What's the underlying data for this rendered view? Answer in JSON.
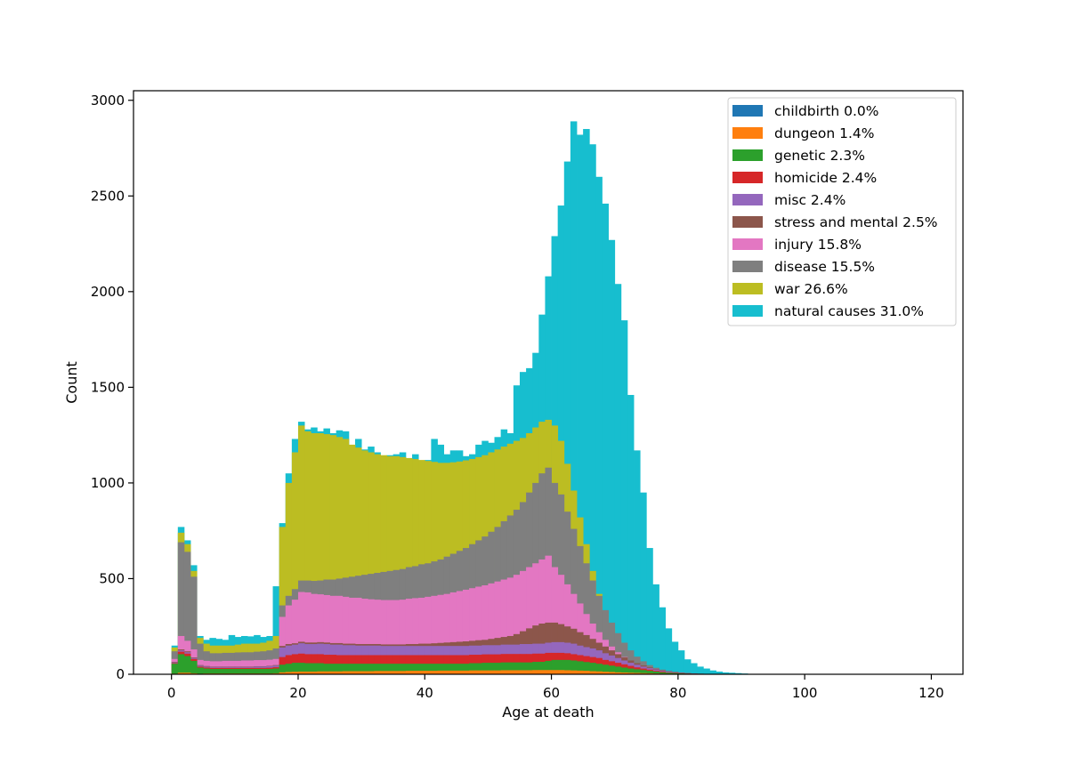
{
  "chart_data": {
    "type": "bar",
    "stacked": true,
    "histogram": true,
    "xlabel": "Age at death",
    "ylabel": "Count",
    "xlim": [
      -6,
      125
    ],
    "ylim": [
      0,
      3050
    ],
    "xticks": [
      0,
      20,
      40,
      60,
      80,
      100,
      120
    ],
    "yticks": [
      0,
      500,
      1000,
      1500,
      2000,
      2500,
      3000
    ],
    "bin_width": 1,
    "legend_position": "upper-right",
    "legend": [
      {
        "name": "childbirth 0.0%",
        "color": "#1f77b4"
      },
      {
        "name": "dungeon 1.4%",
        "color": "#ff7f0e"
      },
      {
        "name": "genetic 2.3%",
        "color": "#2ca02c"
      },
      {
        "name": "homicide 2.4%",
        "color": "#d62728"
      },
      {
        "name": "misc 2.4%",
        "color": "#9467bd"
      },
      {
        "name": "stress and mental 2.5%",
        "color": "#8c564b"
      },
      {
        "name": "injury 15.8%",
        "color": "#e377c2"
      },
      {
        "name": "disease 15.5%",
        "color": "#7f7f7f"
      },
      {
        "name": "war 26.6%",
        "color": "#bcbd22"
      },
      {
        "name": "natural causes 31.0%",
        "color": "#17becf"
      }
    ],
    "x": [
      0,
      1,
      2,
      3,
      4,
      5,
      6,
      7,
      8,
      9,
      10,
      11,
      12,
      13,
      14,
      15,
      16,
      17,
      18,
      19,
      20,
      21,
      22,
      23,
      24,
      25,
      26,
      27,
      28,
      29,
      30,
      31,
      32,
      33,
      34,
      35,
      36,
      37,
      38,
      39,
      40,
      41,
      42,
      43,
      44,
      45,
      46,
      47,
      48,
      49,
      50,
      51,
      52,
      53,
      54,
      55,
      56,
      57,
      58,
      59,
      60,
      61,
      62,
      63,
      64,
      65,
      66,
      67,
      68,
      69,
      70,
      71,
      72,
      73,
      74,
      75,
      76,
      77,
      78,
      79,
      80,
      81,
      82,
      83,
      84,
      85,
      86,
      87,
      88,
      89,
      90,
      91,
      92,
      93,
      94,
      95,
      96,
      97,
      98,
      99,
      100,
      101,
      102,
      103,
      104,
      105,
      106,
      107,
      108
    ],
    "stack_totals": {
      "childbirth": [
        0,
        0,
        0,
        0,
        0,
        0,
        0,
        0,
        0,
        0,
        0,
        0,
        0,
        0,
        0,
        0,
        0,
        0,
        0,
        0,
        0,
        0,
        0,
        0,
        0,
        0,
        0,
        0,
        0,
        0,
        0,
        0,
        0,
        0,
        0,
        0,
        0,
        0,
        0,
        0,
        0,
        0,
        0,
        0,
        0,
        0,
        0,
        0,
        0,
        0,
        0,
        0,
        0,
        0,
        0,
        0,
        0,
        0,
        0,
        0,
        0,
        0,
        0,
        0,
        0,
        0,
        0,
        0,
        0,
        0,
        0,
        0,
        0,
        0,
        0,
        0,
        0,
        0,
        0,
        0,
        0,
        0,
        0,
        0,
        0,
        0,
        0,
        0,
        0,
        0,
        0,
        0,
        0,
        0,
        0,
        0,
        0,
        0,
        0,
        0,
        0,
        0,
        0,
        0,
        0,
        0,
        0,
        0,
        0
      ],
      "dungeon": [
        3,
        8,
        8,
        5,
        3,
        4,
        4,
        4,
        4,
        4,
        4,
        4,
        4,
        4,
        4,
        4,
        5,
        10,
        12,
        13,
        14,
        14,
        14,
        15,
        15,
        15,
        15,
        16,
        16,
        16,
        16,
        16,
        17,
        17,
        17,
        17,
        17,
        18,
        18,
        18,
        18,
        18,
        19,
        19,
        19,
        19,
        19,
        20,
        20,
        20,
        20,
        20,
        21,
        21,
        21,
        21,
        21,
        22,
        22,
        22,
        22,
        22,
        21,
        20,
        19,
        18,
        16,
        15,
        13,
        12,
        10,
        9,
        8,
        7,
        6,
        5,
        4,
        3,
        3,
        2,
        2,
        1,
        1,
        1,
        1,
        0,
        0,
        0,
        0,
        0,
        0,
        0,
        0,
        0,
        0,
        0,
        0,
        0,
        0,
        0,
        0,
        0,
        0,
        0,
        0,
        0,
        0,
        0,
        0
      ],
      "genetic": [
        55,
        105,
        95,
        70,
        35,
        30,
        28,
        28,
        28,
        28,
        28,
        28,
        28,
        28,
        28,
        28,
        30,
        50,
        55,
        60,
        60,
        58,
        58,
        58,
        55,
        55,
        55,
        55,
        55,
        55,
        55,
        55,
        55,
        55,
        55,
        55,
        55,
        55,
        55,
        55,
        55,
        55,
        55,
        55,
        55,
        55,
        55,
        58,
        58,
        60,
        60,
        60,
        62,
        62,
        62,
        62,
        62,
        65,
        65,
        70,
        75,
        75,
        75,
        72,
        68,
        64,
        60,
        55,
        50,
        45,
        40,
        35,
        30,
        26,
        22,
        18,
        14,
        10,
        8,
        6,
        4,
        3,
        2,
        1,
        1,
        0,
        0,
        0,
        0,
        0,
        0,
        0,
        0,
        0,
        0,
        0,
        0,
        0,
        0,
        0,
        0,
        0,
        0,
        0,
        0,
        0,
        0,
        0,
        0
      ],
      "homicide": [
        58,
        118,
        108,
        80,
        40,
        35,
        33,
        33,
        33,
        33,
        33,
        33,
        33,
        33,
        33,
        34,
        37,
        90,
        100,
        105,
        108,
        105,
        105,
        105,
        102,
        102,
        100,
        100,
        100,
        100,
        100,
        100,
        100,
        100,
        100,
        100,
        100,
        100,
        100,
        100,
        100,
        100,
        100,
        100,
        100,
        100,
        100,
        102,
        102,
        104,
        104,
        104,
        106,
        106,
        106,
        106,
        106,
        108,
        108,
        112,
        112,
        112,
        110,
        105,
        100,
        95,
        90,
        85,
        75,
        68,
        60,
        52,
        44,
        36,
        30,
        24,
        18,
        14,
        10,
        8,
        6,
        4,
        3,
        2,
        1,
        1,
        0,
        0,
        0,
        0,
        0,
        0,
        0,
        0,
        0,
        0,
        0,
        0,
        0,
        0,
        0,
        0,
        0,
        0,
        0,
        0,
        0,
        0,
        0
      ],
      "misc": [
        62,
        125,
        115,
        85,
        45,
        40,
        38,
        38,
        38,
        38,
        38,
        38,
        38,
        40,
        40,
        42,
        45,
        140,
        150,
        155,
        162,
        158,
        158,
        160,
        158,
        155,
        155,
        152,
        152,
        150,
        150,
        150,
        150,
        148,
        148,
        148,
        148,
        148,
        148,
        148,
        148,
        148,
        148,
        148,
        148,
        148,
        148,
        150,
        150,
        152,
        152,
        152,
        155,
        155,
        155,
        158,
        158,
        160,
        160,
        165,
        168,
        168,
        165,
        160,
        150,
        142,
        135,
        125,
        110,
        98,
        85,
        72,
        60,
        50,
        40,
        32,
        25,
        18,
        14,
        10,
        7,
        5,
        3,
        2,
        1,
        1,
        0,
        0,
        0,
        0,
        0,
        0,
        0,
        0,
        0,
        0,
        0,
        0,
        0,
        0,
        0,
        0,
        0,
        0,
        0,
        0,
        0,
        0,
        0
      ],
      "stress": [
        65,
        130,
        120,
        88,
        48,
        43,
        40,
        40,
        40,
        40,
        40,
        40,
        40,
        42,
        42,
        44,
        48,
        148,
        158,
        162,
        170,
        166,
        166,
        168,
        166,
        163,
        163,
        160,
        160,
        158,
        158,
        158,
        158,
        156,
        156,
        156,
        156,
        158,
        158,
        160,
        160,
        162,
        164,
        166,
        168,
        170,
        172,
        175,
        178,
        180,
        185,
        190,
        195,
        200,
        210,
        225,
        240,
        255,
        265,
        270,
        270,
        262,
        250,
        238,
        220,
        205,
        185,
        165,
        145,
        125,
        105,
        88,
        72,
        58,
        46,
        36,
        28,
        21,
        16,
        12,
        8,
        6,
        4,
        3,
        2,
        1,
        0,
        0,
        0,
        0,
        0,
        0,
        0,
        0,
        0,
        0,
        0,
        0,
        0,
        0,
        0,
        0,
        0,
        0,
        0,
        0,
        0,
        0,
        0
      ],
      "injury": [
        80,
        200,
        175,
        130,
        75,
        70,
        68,
        68,
        70,
        70,
        70,
        72,
        72,
        74,
        74,
        76,
        80,
        300,
        360,
        390,
        430,
        428,
        420,
        418,
        414,
        410,
        410,
        405,
        400,
        400,
        395,
        392,
        390,
        388,
        388,
        388,
        390,
        395,
        398,
        400,
        405,
        410,
        415,
        420,
        428,
        435,
        442,
        450,
        458,
        465,
        475,
        485,
        495,
        505,
        520,
        540,
        560,
        580,
        600,
        620,
        560,
        520,
        470,
        420,
        370,
        315,
        265,
        220,
        180,
        145,
        115,
        90,
        70,
        55,
        42,
        32,
        24,
        18,
        13,
        9,
        6,
        4,
        3,
        2,
        1,
        1,
        0,
        0,
        0,
        0,
        0,
        0,
        0,
        0,
        0,
        0,
        0,
        0,
        0,
        0,
        0,
        0,
        0,
        0,
        0,
        0,
        0,
        0,
        0
      ],
      "disease": [
        120,
        690,
        640,
        510,
        160,
        120,
        110,
        110,
        112,
        112,
        114,
        115,
        115,
        118,
        120,
        125,
        135,
        360,
        410,
        445,
        490,
        490,
        488,
        490,
        495,
        495,
        500,
        505,
        510,
        515,
        520,
        525,
        530,
        535,
        540,
        545,
        550,
        560,
        565,
        575,
        580,
        590,
        600,
        615,
        630,
        645,
        660,
        680,
        700,
        720,
        745,
        770,
        800,
        830,
        860,
        900,
        950,
        1000,
        1050,
        1080,
        1000,
        940,
        850,
        760,
        670,
        580,
        490,
        410,
        335,
        270,
        215,
        165,
        125,
        92,
        68,
        48,
        34,
        24,
        17,
        12,
        8,
        6,
        4,
        3,
        2,
        1,
        1,
        0,
        0,
        0,
        0,
        0,
        0,
        0,
        0,
        0,
        0,
        0,
        0,
        0,
        0,
        0,
        0,
        0,
        0,
        0,
        0
      ],
      "war": [
        140,
        740,
        680,
        540,
        190,
        160,
        150,
        150,
        150,
        150,
        155,
        160,
        160,
        160,
        165,
        175,
        200,
        770,
        1000,
        1160,
        1300,
        1270,
        1260,
        1260,
        1255,
        1250,
        1240,
        1230,
        1200,
        1185,
        1170,
        1160,
        1150,
        1145,
        1140,
        1140,
        1135,
        1130,
        1125,
        1120,
        1115,
        1110,
        1105,
        1105,
        1108,
        1112,
        1118,
        1125,
        1135,
        1145,
        1160,
        1175,
        1190,
        1205,
        1220,
        1235,
        1260,
        1290,
        1320,
        1330,
        1300,
        1220,
        1100,
        960,
        820,
        680,
        540,
        420,
        320,
        240,
        175,
        125,
        88,
        62,
        44,
        30,
        21,
        15,
        10,
        7,
        5,
        3,
        2,
        1,
        1,
        0,
        0,
        0,
        0,
        0,
        0,
        0,
        0,
        0,
        0,
        0,
        0,
        0,
        0,
        0,
        0,
        0,
        0,
        0,
        0,
        0,
        0,
        0,
        0
      ],
      "natural": [
        150,
        770,
        700,
        570,
        200,
        180,
        190,
        185,
        180,
        205,
        195,
        200,
        198,
        205,
        195,
        200,
        460,
        790,
        1050,
        1230,
        1320,
        1280,
        1290,
        1270,
        1285,
        1260,
        1275,
        1270,
        1190,
        1230,
        1175,
        1190,
        1160,
        1140,
        1145,
        1150,
        1160,
        1130,
        1150,
        1100,
        1120,
        1230,
        1200,
        1150,
        1170,
        1170,
        1140,
        1150,
        1200,
        1220,
        1210,
        1240,
        1280,
        1260,
        1510,
        1580,
        1600,
        1680,
        1880,
        2080,
        2290,
        2450,
        2680,
        2890,
        2820,
        2850,
        2770,
        2600,
        2460,
        2270,
        2040,
        1850,
        1460,
        1170,
        950,
        660,
        470,
        350,
        240,
        170,
        125,
        78,
        58,
        40,
        30,
        20,
        14,
        10,
        8,
        6,
        4,
        2,
        2,
        1,
        1,
        0,
        0,
        0,
        0,
        0,
        1,
        0,
        0,
        0,
        0,
        0,
        1,
        0,
        0
      ]
    }
  }
}
